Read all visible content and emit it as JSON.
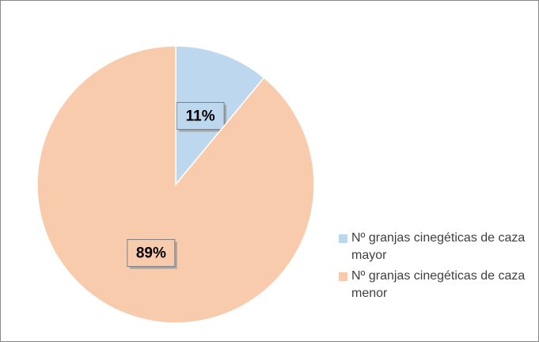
{
  "chart_data": {
    "type": "pie",
    "categories": [
      "Nº granjas cinegéticas de caza mayor",
      "Nº granjas cinegéticas de caza menor"
    ],
    "values": [
      11,
      89
    ],
    "value_labels": [
      "11%",
      "89%"
    ],
    "colors": [
      "#bdd7ee",
      "#f8cbad"
    ],
    "legend": "right"
  }
}
